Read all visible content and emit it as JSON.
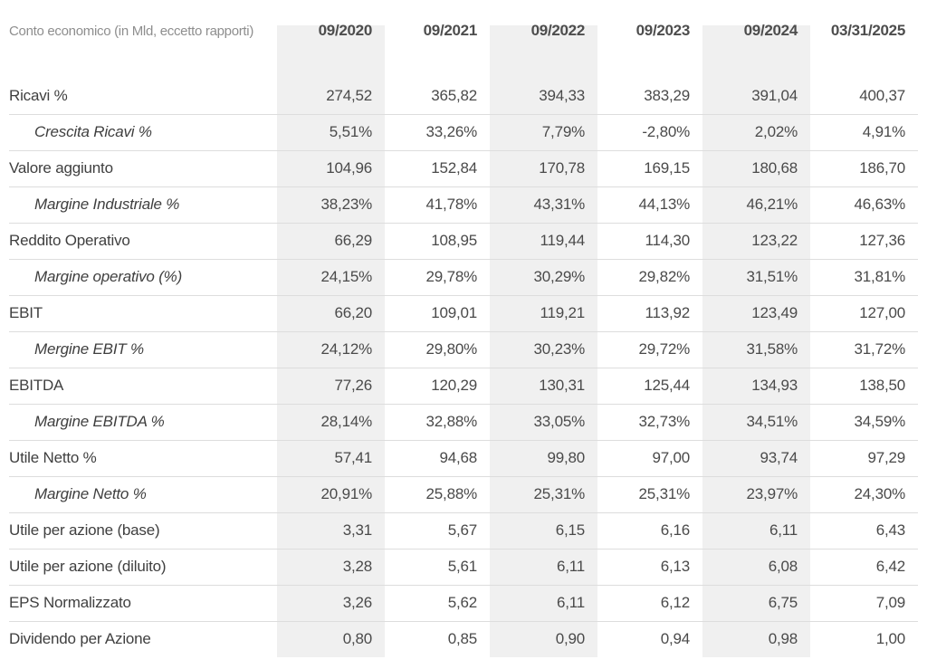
{
  "chart_data": {
    "type": "table",
    "title": "Conto economico (in Mld, eccetto rapporti)",
    "columns": [
      "09/2020",
      "09/2021",
      "09/2022",
      "09/2023",
      "09/2024",
      "03/31/2025"
    ],
    "striped_column_indexes": [
      0,
      2,
      4
    ],
    "rows": [
      {
        "label": "Ricavi %",
        "style": "main",
        "values": [
          "274,52",
          "365,82",
          "394,33",
          "383,29",
          "391,04",
          "400,37"
        ]
      },
      {
        "label": "Crescita Ricavi %",
        "style": "sub",
        "values": [
          "5,51%",
          "33,26%",
          "7,79%",
          "-2,80%",
          "2,02%",
          "4,91%"
        ]
      },
      {
        "label": "Valore aggiunto",
        "style": "main",
        "values": [
          "104,96",
          "152,84",
          "170,78",
          "169,15",
          "180,68",
          "186,70"
        ]
      },
      {
        "label": "Margine Industriale %",
        "style": "sub",
        "values": [
          "38,23%",
          "41,78%",
          "43,31%",
          "44,13%",
          "46,21%",
          "46,63%"
        ]
      },
      {
        "label": "Reddito Operativo",
        "style": "main",
        "values": [
          "66,29",
          "108,95",
          "119,44",
          "114,30",
          "123,22",
          "127,36"
        ]
      },
      {
        "label": "Margine operativo (%)",
        "style": "sub",
        "values": [
          "24,15%",
          "29,78%",
          "30,29%",
          "29,82%",
          "31,51%",
          "31,81%"
        ]
      },
      {
        "label": "EBIT",
        "style": "main",
        "values": [
          "66,20",
          "109,01",
          "119,21",
          "113,92",
          "123,49",
          "127,00"
        ]
      },
      {
        "label": "Mergine EBIT %",
        "style": "sub",
        "values": [
          "24,12%",
          "29,80%",
          "30,23%",
          "29,72%",
          "31,58%",
          "31,72%"
        ]
      },
      {
        "label": "EBITDA",
        "style": "main",
        "values": [
          "77,26",
          "120,29",
          "130,31",
          "125,44",
          "134,93",
          "138,50"
        ]
      },
      {
        "label": "Margine EBITDA %",
        "style": "sub",
        "values": [
          "28,14%",
          "32,88%",
          "33,05%",
          "32,73%",
          "34,51%",
          "34,59%"
        ]
      },
      {
        "label": "Utile Netto %",
        "style": "main",
        "values": [
          "57,41",
          "94,68",
          "99,80",
          "97,00",
          "93,74",
          "97,29"
        ]
      },
      {
        "label": "Margine Netto %",
        "style": "sub",
        "values": [
          "20,91%",
          "25,88%",
          "25,31%",
          "25,31%",
          "23,97%",
          "24,30%"
        ]
      },
      {
        "label": "Utile per azione (base)",
        "style": "main",
        "values": [
          "3,31",
          "5,67",
          "6,15",
          "6,16",
          "6,11",
          "6,43"
        ]
      },
      {
        "label": "Utile per azione (diluito)",
        "style": "main",
        "values": [
          "3,28",
          "5,61",
          "6,11",
          "6,13",
          "6,08",
          "6,42"
        ]
      },
      {
        "label": "EPS Normalizzato",
        "style": "main",
        "values": [
          "3,26",
          "5,62",
          "6,11",
          "6,12",
          "6,75",
          "7,09"
        ]
      },
      {
        "label": "Dividendo per Azione",
        "style": "main",
        "values": [
          "0,80",
          "0,85",
          "0,90",
          "0,94",
          "0,98",
          "1,00"
        ]
      }
    ],
    "layout": {
      "legend": "none",
      "grid": "horizontal-row-separators",
      "value_alignment": "right",
      "striping": "vertical-column-bands"
    },
    "colors": {
      "background": "#ffffff",
      "stripe_bg": "#f0f0f0",
      "separator": "#dddddd",
      "label_text": "#3f3f3f",
      "value_text": "#4a4a4a",
      "header_text": "#4d4d4d",
      "title_text": "#8e8e8e"
    }
  }
}
